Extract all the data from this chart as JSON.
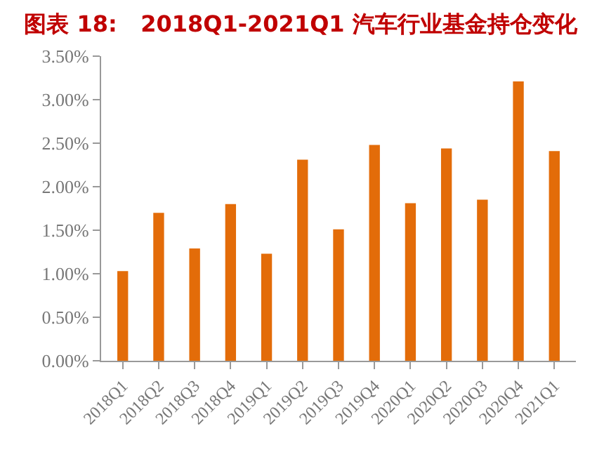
{
  "chart_data": {
    "type": "bar",
    "title": "图表 18:   2018Q1-2021Q1 汽车行业基金持仓变化",
    "categories": [
      "2018Q1",
      "2018Q2",
      "2018Q3",
      "2018Q4",
      "2019Q1",
      "2019Q2",
      "2019Q3",
      "2019Q4",
      "2020Q1",
      "2020Q2",
      "2020Q3",
      "2020Q4",
      "2021Q1"
    ],
    "values": [
      1.03,
      1.7,
      1.29,
      1.8,
      1.23,
      2.31,
      1.51,
      2.48,
      1.81,
      2.44,
      1.85,
      3.21,
      2.41
    ],
    "color": "#e36c09",
    "ylim": [
      0,
      3.5
    ],
    "yticks": [
      {
        "value": 0,
        "label": "0.00%"
      },
      {
        "value": 0.5,
        "label": "0.50%"
      },
      {
        "value": 1,
        "label": "1.00%"
      },
      {
        "value": 1.5,
        "label": "1.50%"
      },
      {
        "value": 2,
        "label": "2.00%"
      },
      {
        "value": 2.5,
        "label": "2.50%"
      },
      {
        "value": 3,
        "label": "3.00%"
      },
      {
        "value": 3.5,
        "label": "3.50%"
      }
    ],
    "grid": false
  }
}
